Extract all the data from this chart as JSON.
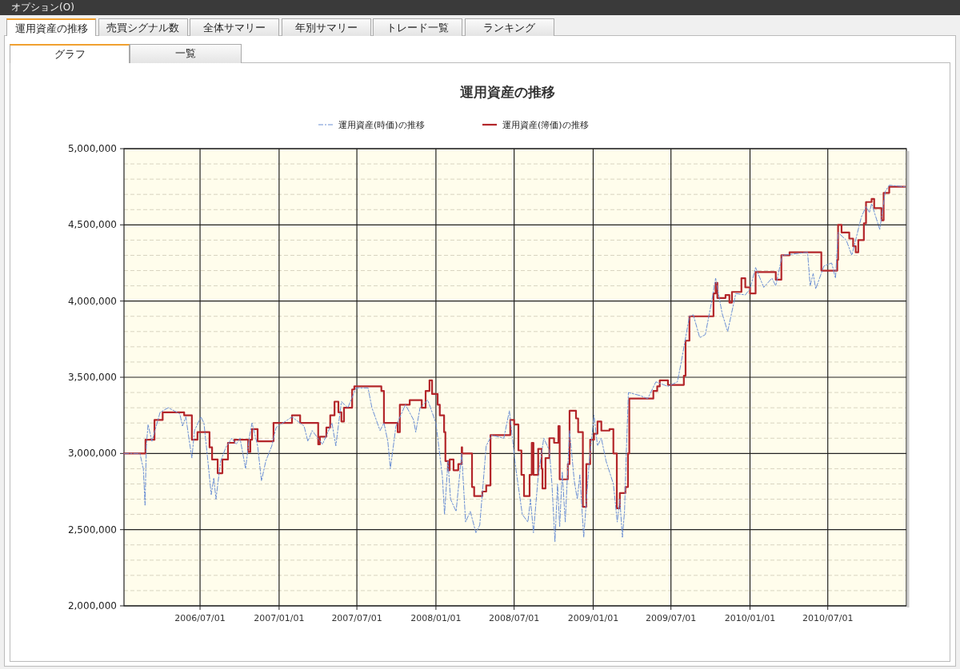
{
  "chart_data": {
    "type": "line",
    "title": "運用資産の推移",
    "annotations": [
      "オプション(O)",
      "運用資産の推移",
      "売買シグナル数",
      "全体サマリー",
      "年別サマリー",
      "トレード一覧",
      "ランキング",
      "グラフ",
      "一覧"
    ],
    "xlim": [
      "2006-01-05",
      "2010-12-31"
    ],
    "xticks": [
      {
        "value": "2006-07-01",
        "label": "2006/07/01"
      },
      {
        "value": "2007-01-01",
        "label": "2007/01/01"
      },
      {
        "value": "2007-07-01",
        "label": "2007/07/01"
      },
      {
        "value": "2008-01-01",
        "label": "2008/01/01"
      },
      {
        "value": "2008-07-01",
        "label": "2008/07/01"
      },
      {
        "value": "2009-01-01",
        "label": "2009/01/01"
      },
      {
        "value": "2009-07-01",
        "label": "2009/07/01"
      },
      {
        "value": "2010-01-01",
        "label": "2010/01/01"
      },
      {
        "value": "2010-07-01",
        "label": "2010/07/01"
      }
    ],
    "ylim": [
      2000000,
      5000000
    ],
    "yticks": [
      {
        "value": 2000000,
        "label": "2,000,000"
      },
      {
        "value": 2100000,
        "label": null
      },
      {
        "value": 2200000,
        "label": null
      },
      {
        "value": 2300000,
        "label": null
      },
      {
        "value": 2400000,
        "label": null
      },
      {
        "value": 2500000,
        "label": "2,500,000"
      },
      {
        "value": 2600000,
        "label": null
      },
      {
        "value": 2700000,
        "label": null
      },
      {
        "value": 2800000,
        "label": null
      },
      {
        "value": 2900000,
        "label": null
      },
      {
        "value": 3000000,
        "label": "3,000,000"
      },
      {
        "value": 3100000,
        "label": null
      },
      {
        "value": 3200000,
        "label": null
      },
      {
        "value": 3300000,
        "label": null
      },
      {
        "value": 3400000,
        "label": null
      },
      {
        "value": 3500000,
        "label": "3,500,000"
      },
      {
        "value": 3600000,
        "label": null
      },
      {
        "value": 3700000,
        "label": null
      },
      {
        "value": 3800000,
        "label": null
      },
      {
        "value": 3900000,
        "label": null
      },
      {
        "value": 4000000,
        "label": "4,000,000"
      },
      {
        "value": 4100000,
        "label": null
      },
      {
        "value": 4200000,
        "label": null
      },
      {
        "value": 4300000,
        "label": null
      },
      {
        "value": 4400000,
        "label": null
      },
      {
        "value": 4500000,
        "label": "4,500,000"
      },
      {
        "value": 4600000,
        "label": null
      },
      {
        "value": 4700000,
        "label": null
      },
      {
        "value": 4800000,
        "label": null
      },
      {
        "value": 4900000,
        "label": null
      },
      {
        "value": 5000000,
        "label": "5,000,000"
      }
    ],
    "grid": true,
    "legend": "top",
    "marker": "none",
    "series": [
      {
        "name": "運用資産(時価)の推移",
        "type": "line",
        "line_style": "dashed",
        "color": "#6b8fd4",
        "x": [
          "2006-01-05",
          "2006-02-11",
          "2006-02-19",
          "2006-02-23",
          "2006-02-26",
          "2006-03-02",
          "2006-03-11",
          "2006-03-30",
          "2006-04-18",
          "2006-05-15",
          "2006-05-21",
          "2006-05-29",
          "2006-06-05",
          "2006-06-12",
          "2006-06-18",
          "2006-07-03",
          "2006-07-10",
          "2006-07-16",
          "2006-07-27",
          "2006-08-02",
          "2006-08-07",
          "2006-08-18",
          "2006-08-30",
          "2006-09-13",
          "2006-09-23",
          "2006-10-02",
          "2006-10-15",
          "2006-10-24",
          "2006-10-30",
          "2006-11-12",
          "2006-11-21",
          "2006-12-01",
          "2006-12-15",
          "2006-12-25",
          "2007-01-31",
          "2007-02-28",
          "2007-03-09",
          "2007-03-19",
          "2007-04-12",
          "2007-05-04",
          "2007-05-13",
          "2007-05-26",
          "2007-06-10",
          "2007-06-29",
          "2007-07-27",
          "2007-08-05",
          "2007-08-24",
          "2007-09-02",
          "2007-09-11",
          "2007-09-17",
          "2007-09-30",
          "2007-10-22",
          "2007-11-10",
          "2007-11-15",
          "2007-11-25",
          "2007-12-13",
          "2008-01-01",
          "2008-01-16",
          "2008-01-21",
          "2008-01-29",
          "2008-02-04",
          "2008-02-17",
          "2008-03-01",
          "2008-03-10",
          "2008-03-21",
          "2008-04-03",
          "2008-04-12",
          "2008-04-27",
          "2008-05-10",
          "2008-06-07",
          "2008-06-20",
          "2008-07-05",
          "2008-07-20",
          "2008-08-02",
          "2008-08-08",
          "2008-08-15",
          "2008-08-26",
          "2008-09-08",
          "2008-09-21",
          "2008-09-27",
          "2008-10-04",
          "2008-10-10",
          "2008-10-15",
          "2008-10-21",
          "2008-10-28",
          "2008-11-07",
          "2008-11-18",
          "2008-11-25",
          "2008-12-01",
          "2008-12-10",
          "2008-12-23",
          "2009-01-03",
          "2009-01-11",
          "2009-01-20",
          "2009-01-31",
          "2009-02-17",
          "2009-02-26",
          "2009-03-04",
          "2009-03-10",
          "2009-03-15",
          "2009-03-19",
          "2009-03-24",
          "2009-04-20",
          "2009-05-08",
          "2009-05-27",
          "2009-06-24",
          "2009-07-16",
          "2009-07-25",
          "2009-08-13",
          "2009-08-22",
          "2009-09-06",
          "2009-09-19",
          "2009-10-04",
          "2009-10-13",
          "2009-10-28",
          "2009-11-10",
          "2009-11-29",
          "2009-12-21",
          "2010-01-01",
          "2010-01-14",
          "2010-02-02",
          "2010-02-21",
          "2010-03-02",
          "2010-03-17",
          "2010-05-15",
          "2010-05-21",
          "2010-05-28",
          "2010-06-03",
          "2010-06-22",
          "2010-07-10",
          "2010-07-19",
          "2010-07-25",
          "2010-08-13",
          "2010-08-26",
          "2010-09-17",
          "2010-09-28",
          "2010-10-06",
          "2010-10-11",
          "2010-10-30",
          "2010-11-12",
          "2010-11-21",
          "2010-12-28"
        ],
        "values": [
          3000000,
          3000000,
          2900000,
          2660000,
          3050000,
          3190000,
          3080000,
          3270000,
          3300000,
          3260000,
          3180000,
          3240000,
          3100000,
          2970000,
          3150000,
          3240000,
          3200000,
          3040000,
          2730000,
          2840000,
          2700000,
          2950000,
          3040000,
          3100000,
          3060000,
          3100000,
          2900000,
          3110000,
          3200000,
          3050000,
          2820000,
          2950000,
          3050000,
          3170000,
          3240000,
          3180000,
          3080000,
          3150000,
          3060000,
          3200000,
          3050000,
          3340000,
          3300000,
          3430000,
          3430000,
          3300000,
          3150000,
          3200000,
          3080000,
          2900000,
          3180000,
          3320000,
          3220000,
          3140000,
          3300000,
          3350000,
          3200000,
          2850000,
          2600000,
          2950000,
          2700000,
          2620000,
          3000000,
          2550000,
          2620000,
          2480000,
          2530000,
          3050000,
          3120000,
          3100000,
          3280000,
          2900000,
          2600000,
          2550000,
          2700000,
          2480000,
          2850000,
          3100000,
          3020000,
          2800000,
          2420000,
          2800000,
          2520000,
          2880000,
          2550000,
          3150000,
          2820000,
          2700000,
          2860000,
          2450000,
          2950000,
          3250000,
          3050000,
          3100000,
          2950000,
          2800000,
          2550000,
          2700000,
          2450000,
          2620000,
          3000000,
          3400000,
          3380000,
          3360000,
          3470000,
          3440000,
          3470000,
          3600000,
          3900000,
          3910000,
          3760000,
          3780000,
          4000000,
          4150000,
          3920000,
          3800000,
          4050000,
          4040000,
          4080000,
          4220000,
          4090000,
          4150000,
          4100000,
          4300000,
          4320000,
          4100000,
          4180000,
          4080000,
          4230000,
          4250000,
          4150000,
          4450000,
          4400000,
          4300000,
          4550000,
          4620000,
          4580000,
          4640000,
          4470000,
          4720000,
          4760000,
          4750000
        ]
      },
      {
        "name": "運用資産(簿価)の推移",
        "type": "step",
        "line_style": "solid",
        "color": "#b3262a",
        "x": [
          "2006-01-05",
          "2006-02-24",
          "2006-03-17",
          "2006-04-05",
          "2006-05-25",
          "2006-06-12",
          "2006-06-25",
          "2006-07-23",
          "2006-07-29",
          "2006-08-11",
          "2006-08-22",
          "2006-09-04",
          "2006-09-19",
          "2006-10-21",
          "2006-10-26",
          "2006-10-30",
          "2006-11-12",
          "2006-12-19",
          "2007-01-31",
          "2007-02-19",
          "2007-04-02",
          "2007-04-06",
          "2007-04-21",
          "2007-04-30",
          "2007-05-10",
          "2007-05-19",
          "2007-05-26",
          "2007-06-01",
          "2007-06-20",
          "2007-06-25",
          "2007-08-27",
          "2007-09-02",
          "2007-10-04",
          "2007-10-09",
          "2007-11-01",
          "2007-11-29",
          "2007-12-08",
          "2007-12-17",
          "2007-12-23",
          "2008-01-05",
          "2008-01-10",
          "2008-01-20",
          "2008-01-23",
          "2008-01-29",
          "2008-02-02",
          "2008-02-11",
          "2008-02-22",
          "2008-03-01",
          "2008-03-02",
          "2008-03-25",
          "2008-03-30",
          "2008-04-18",
          "2008-04-27",
          "2008-05-07",
          "2008-06-22",
          "2008-07-01",
          "2008-07-11",
          "2008-07-18",
          "2008-07-24",
          "2008-08-06",
          "2008-08-11",
          "2008-08-15",
          "2008-08-26",
          "2008-09-03",
          "2008-09-05",
          "2008-09-12",
          "2008-09-21",
          "2008-10-02",
          "2008-10-12",
          "2008-10-15",
          "2008-11-03",
          "2008-11-07",
          "2008-11-22",
          "2008-11-27",
          "2008-12-08",
          "2008-12-16",
          "2008-12-25",
          "2009-01-03",
          "2009-01-11",
          "2009-01-20",
          "2009-02-08",
          "2009-02-17",
          "2009-02-25",
          "2009-03-04",
          "2009-03-17",
          "2009-03-23",
          "2009-03-26",
          "2009-05-21",
          "2009-05-30",
          "2009-06-05",
          "2009-06-24",
          "2009-07-31",
          "2009-08-04",
          "2009-08-13",
          "2009-10-08",
          "2009-10-13",
          "2009-10-17",
          "2009-11-05",
          "2009-11-14",
          "2009-11-20",
          "2009-12-12",
          "2009-12-21",
          "2010-01-01",
          "2010-01-14",
          "2010-03-02",
          "2010-03-15",
          "2010-04-03",
          "2010-06-16",
          "2010-07-23",
          "2010-07-25",
          "2010-08-02",
          "2010-08-20",
          "2010-08-29",
          "2010-09-04",
          "2010-09-10",
          "2010-09-23",
          "2010-09-28",
          "2010-10-11",
          "2010-10-17",
          "2010-11-03",
          "2010-11-08",
          "2010-11-21",
          "2010-12-28"
        ],
        "values": [
          3000000,
          3090000,
          3220000,
          3270000,
          3250000,
          3090000,
          3140000,
          3040000,
          2960000,
          2870000,
          2960000,
          3070000,
          3090000,
          3010000,
          3090000,
          3160000,
          3080000,
          3200000,
          3250000,
          3200000,
          3060000,
          3110000,
          3170000,
          3250000,
          3340000,
          3270000,
          3210000,
          3300000,
          3420000,
          3440000,
          3410000,
          3200000,
          3140000,
          3320000,
          3350000,
          3300000,
          3410000,
          3480000,
          3390000,
          3320000,
          3250000,
          3140000,
          2950000,
          2890000,
          2960000,
          2890000,
          2930000,
          3040000,
          3000000,
          2780000,
          2720000,
          2750000,
          2790000,
          3120000,
          3220000,
          3190000,
          3020000,
          2860000,
          2720000,
          2860000,
          3070000,
          2860000,
          3030000,
          2900000,
          2770000,
          2970000,
          3100000,
          3070000,
          3180000,
          2830000,
          2930000,
          3280000,
          3230000,
          3140000,
          2650000,
          2930000,
          3090000,
          3130000,
          3210000,
          3150000,
          3160000,
          3000000,
          2640000,
          2740000,
          2780000,
          3000000,
          3360000,
          3410000,
          3440000,
          3480000,
          3450000,
          3510000,
          3740000,
          3900000,
          4050000,
          4120000,
          4020000,
          4040000,
          3990000,
          4060000,
          4150000,
          4090000,
          4050000,
          4190000,
          4140000,
          4300000,
          4320000,
          4200000,
          4270000,
          4500000,
          4450000,
          4410000,
          4360000,
          4320000,
          4400000,
          4510000,
          4650000,
          4670000,
          4610000,
          4530000,
          4710000,
          4750000,
          4750000
        ]
      }
    ]
  }
}
